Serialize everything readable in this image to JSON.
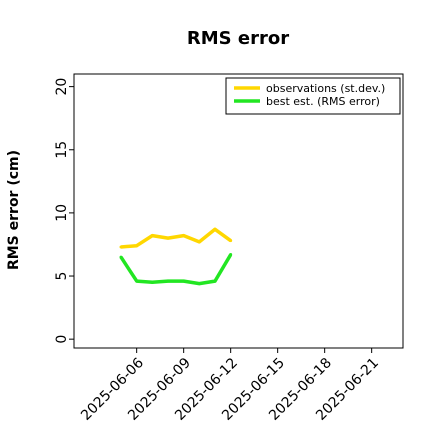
{
  "chart_data": {
    "type": "line",
    "title": "RMS error",
    "xlabel": "",
    "ylabel": "RMS error (cm)",
    "ylim": [
      -0.7,
      21
    ],
    "yticks": [
      0,
      5,
      10,
      15,
      20
    ],
    "xlim": [
      "2025-06-02",
      "2025-06-23"
    ],
    "xticks": [
      "2025-06-06",
      "2025-06-09",
      "2025-06-12",
      "2025-06-15",
      "2025-06-18",
      "2025-06-21"
    ],
    "highlight_tick": "2025-06-12",
    "highlight_color": "#228B22",
    "grid": false,
    "legend_position": "top-right",
    "x": [
      "2025-06-05",
      "2025-06-06",
      "2025-06-07",
      "2025-06-08",
      "2025-06-09",
      "2025-06-10",
      "2025-06-11",
      "2025-06-12"
    ],
    "series": [
      {
        "name": "observations (st.dev.)",
        "color": "#FFD700",
        "values": [
          7.3,
          7.4,
          8.2,
          8.0,
          8.2,
          7.7,
          8.7,
          7.8
        ]
      },
      {
        "name": "best est. (RMS error)",
        "color": "#22E622",
        "values": [
          6.5,
          4.6,
          4.5,
          4.6,
          4.6,
          4.4,
          4.6,
          6.7
        ]
      }
    ]
  }
}
